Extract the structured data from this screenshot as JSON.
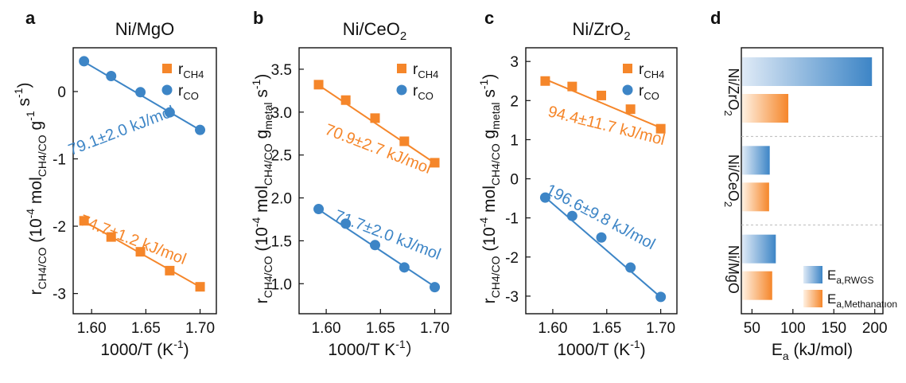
{
  "colors": {
    "ch4": "#F5862A",
    "co": "#3D85C6",
    "axis": "#111111",
    "separator": "#bbbbbb"
  },
  "panels": [
    {
      "letter": "a",
      "title": "Ni/MgO",
      "title_sub": "",
      "ylabel": {
        "pre": "r",
        "sub": "CH4/CO",
        "mid": " (10",
        "sup": "-4",
        "mol": " mol",
        "sub2": "CH4/CO",
        "g": " g",
        "sup2": "-1",
        "sub3": "",
        "s": " s",
        "sup3": "-1",
        "end": ")"
      },
      "xlabel": {
        "text": "1000/T (K",
        "sup": "-1",
        "end": ")"
      },
      "legend": [
        {
          "series": "CH4",
          "label": "r",
          "sub": "CH4"
        },
        {
          "series": "CO",
          "label": "r",
          "sub": "CO"
        }
      ]
    },
    {
      "letter": "b",
      "title": "Ni/CeO",
      "title_sub": "2",
      "ylabel": {
        "pre": "r",
        "sub": "CH4/CO",
        "mid": " (10",
        "sup": "-4",
        "mol": " mol",
        "sub2": "CH4/CO",
        "g": " g",
        "sup2": "",
        "sub3": "metal",
        "s": " s",
        "sup3": "-1",
        "end": ")"
      },
      "xlabel": {
        "text": "1000/T   K",
        "sup": "-1",
        "end": "）"
      },
      "legend": [
        {
          "series": "CH4",
          "label": "r",
          "sub": "CH4"
        },
        {
          "series": "CO",
          "label": "r",
          "sub": "CO"
        }
      ]
    },
    {
      "letter": "c",
      "title": "Ni/ZrO",
      "title_sub": "2",
      "ylabel": {
        "pre": "r",
        "sub": "CH4/CO",
        "mid": " (10",
        "sup": "-4",
        "mol": " mol",
        "sub2": "CH4/CO",
        "g": " g",
        "sup2": "",
        "sub3": "metal",
        "s": " s",
        "sup3": "-1",
        "end": ")"
      },
      "xlabel": {
        "text": "1000/T (K",
        "sup": "-1",
        "end": ")"
      },
      "legend": [
        {
          "series": "CH4",
          "label": "r",
          "sub": "CH4"
        },
        {
          "series": "CO",
          "label": "r",
          "sub": "CO"
        }
      ]
    },
    {
      "letter": "d",
      "xlabel": {
        "text": "E",
        "sub": "a",
        "end": " (kJ/mol)"
      },
      "legend": [
        {
          "series": "RWGS",
          "label": "E",
          "sub": "a,RWGS"
        },
        {
          "series": "Methanation",
          "label": "E",
          "sub": "a,Methanatıon"
        }
      ]
    }
  ],
  "chart_data": [
    {
      "type": "scatter",
      "panel": "a",
      "x_ticks": [
        "1.60",
        "1.65",
        "1.70"
      ],
      "y_ticks": [
        "-3",
        "-2",
        "-1",
        "0"
      ],
      "xlim": [
        1.583,
        1.715
      ],
      "ylim": [
        -3.3,
        0.65
      ],
      "series": [
        {
          "name": "rCH4",
          "color": "#F5862A",
          "marker": "square",
          "x": [
            1.593,
            1.618,
            1.645,
            1.672,
            1.7
          ],
          "y": [
            -1.92,
            -2.16,
            -2.38,
            -2.66,
            -2.9
          ],
          "fit": [
            [
              1.59,
              -1.9
            ],
            [
              1.703,
              -2.93
            ]
          ],
          "annotation": "74.7±1.2 kJ/mol"
        },
        {
          "name": "rCO",
          "color": "#3D85C6",
          "marker": "circle",
          "x": [
            1.593,
            1.618,
            1.645,
            1.672,
            1.7
          ],
          "y": [
            0.45,
            0.23,
            -0.01,
            -0.31,
            -0.57
          ],
          "fit": [
            [
              1.59,
              0.47
            ],
            [
              1.703,
              -0.6
            ]
          ],
          "annotation": "79.1±2.0 kJ/mol"
        }
      ]
    },
    {
      "type": "scatter",
      "panel": "b",
      "x_ticks": [
        "1.60",
        "1.65",
        "1.70"
      ],
      "y_ticks": [
        "1.0",
        "1.5",
        "2.0",
        "2.5",
        "3.0",
        "3.5"
      ],
      "xlim": [
        1.575,
        1.715
      ],
      "ylim": [
        0.65,
        3.75
      ],
      "series": [
        {
          "name": "rCH4",
          "color": "#F5862A",
          "marker": "square",
          "x": [
            1.593,
            1.618,
            1.645,
            1.672,
            1.7
          ],
          "y": [
            3.32,
            3.14,
            2.93,
            2.66,
            2.41
          ],
          "fit": [
            [
              1.59,
              3.34
            ],
            [
              1.703,
              2.38
            ]
          ],
          "annotation": "70.9±2.7 kJ/mol"
        },
        {
          "name": "rCO",
          "color": "#3D85C6",
          "marker": "circle",
          "x": [
            1.593,
            1.618,
            1.645,
            1.672,
            1.7
          ],
          "y": [
            1.87,
            1.7,
            1.45,
            1.19,
            0.96
          ],
          "fit": [
            [
              1.59,
              1.89
            ],
            [
              1.703,
              0.94
            ]
          ],
          "annotation": "71.7±2.0 kJ/mol"
        }
      ]
    },
    {
      "type": "scatter",
      "panel": "c",
      "x_ticks": [
        "1.60",
        "1.65",
        "1.70"
      ],
      "y_ticks": [
        "-3",
        "-2",
        "-1",
        "0",
        "1",
        "2",
        "3"
      ],
      "xlim": [
        1.575,
        1.715
      ],
      "ylim": [
        -3.45,
        3.35
      ],
      "series": [
        {
          "name": "rCH4",
          "color": "#F5862A",
          "marker": "square",
          "x": [
            1.593,
            1.618,
            1.645,
            1.672,
            1.7
          ],
          "y": [
            2.5,
            2.36,
            2.13,
            1.78,
            1.28
          ],
          "fit": [
            [
              1.59,
              2.58
            ],
            [
              1.703,
              1.27
            ]
          ],
          "annotation": "94.4±11.7 kJ/mol"
        },
        {
          "name": "rCO",
          "color": "#3D85C6",
          "marker": "circle",
          "x": [
            1.593,
            1.618,
            1.645,
            1.672,
            1.7
          ],
          "y": [
            -0.48,
            -0.95,
            -1.5,
            -2.27,
            -3.02
          ],
          "fit": [
            [
              1.59,
              -0.4
            ],
            [
              1.703,
              -3.1
            ]
          ],
          "annotation": "196.6±9.8 kJ/mol"
        }
      ]
    },
    {
      "type": "bar",
      "panel": "d",
      "orientation": "horizontal",
      "categories": [
        "Ni/ZrO2",
        "Ni/CeO2",
        "Ni/MgO"
      ],
      "category_labels": [
        {
          "base": "Ni/ZrO",
          "sub": "2"
        },
        {
          "base": "Ni/CeO",
          "sub": "2"
        },
        {
          "base": "Ni/MgO",
          "sub": ""
        }
      ],
      "x_ticks": [
        "50",
        "100",
        "150",
        "200"
      ],
      "xlim": [
        37,
        210
      ],
      "series": [
        {
          "name": "Ea,RWGS",
          "color": "#3D85C6",
          "values": [
            196.6,
            71.7,
            79.1
          ]
        },
        {
          "name": "Ea,Methanation",
          "color": "#F5862A",
          "values": [
            94.4,
            70.9,
            74.7
          ]
        }
      ]
    }
  ]
}
